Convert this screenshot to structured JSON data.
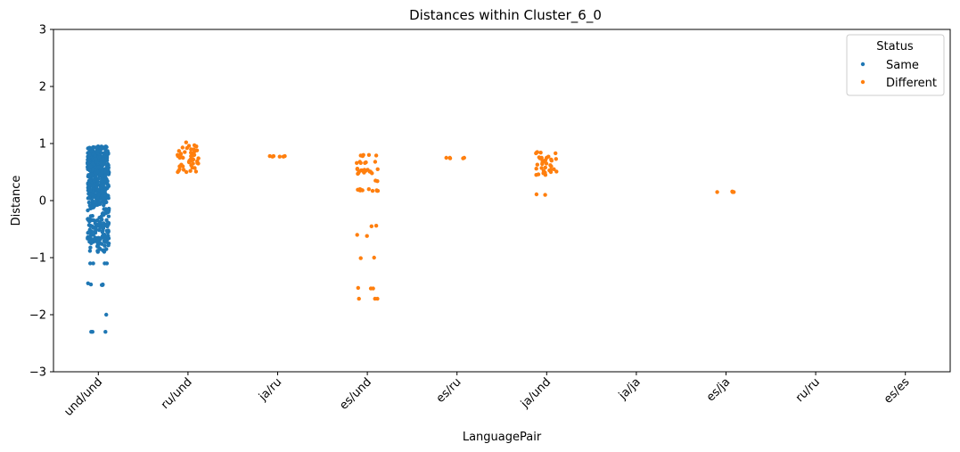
{
  "chart_data": {
    "type": "scatter",
    "title": "Distances within Cluster_6_0",
    "xlabel": "LanguagePair",
    "ylabel": "Distance",
    "categories": [
      "und/und",
      "ru/und",
      "ja/ru",
      "es/und",
      "es/ru",
      "ja/und",
      "ja/ja",
      "es/ja",
      "ru/ru",
      "es/es"
    ],
    "ylim": [
      -3,
      3
    ],
    "yticks": [
      "−3",
      "−2",
      "−1",
      "0",
      "1",
      "2",
      "3"
    ],
    "grid": false,
    "legend": {
      "title": "Status",
      "placement": "top-right",
      "entries": [
        {
          "name": "Same",
          "color": "#1f77b4"
        },
        {
          "name": "Different",
          "color": "#ff7f0e"
        }
      ]
    },
    "series": [
      {
        "name": "Same",
        "color": "#1f77b4",
        "groups": [
          {
            "category": "und/und",
            "y": [
              0.95,
              0.92,
              0.9,
              0.88,
              0.87,
              0.86,
              0.85,
              0.84,
              0.83,
              0.82,
              0.8,
              0.78,
              0.76,
              0.75,
              0.74,
              0.72,
              0.7,
              0.7,
              0.69,
              0.68,
              0.67,
              0.65,
              0.64,
              0.62,
              0.6,
              0.6,
              0.58,
              0.56,
              0.55,
              0.54,
              0.52,
              0.5,
              0.5,
              0.48,
              0.47,
              0.45,
              0.44,
              0.42,
              0.4,
              0.4,
              0.38,
              0.36,
              0.35,
              0.34,
              0.32,
              0.3,
              0.28,
              0.26,
              0.25,
              0.24,
              0.22,
              0.2,
              0.18,
              0.16,
              0.15,
              0.14,
              0.12,
              0.1,
              0.1,
              0.09,
              0.08,
              0.07,
              0.06,
              0.05,
              0.04,
              0.03,
              0.02,
              0.0,
              -0.02,
              -0.05,
              -0.08,
              -0.1,
              -0.12,
              -0.15,
              -0.18,
              -0.2,
              -0.2,
              -0.22,
              -0.25,
              -0.28,
              -0.3,
              -0.32,
              -0.35,
              -0.4,
              -0.45,
              -0.5,
              -0.55,
              -0.6,
              -0.6,
              -0.62,
              -0.65,
              -0.65,
              -0.68,
              -0.7,
              -0.72,
              -0.75,
              -0.8,
              -0.85,
              -0.85,
              -0.88,
              -1.1,
              -1.1,
              -1.1,
              -1.1,
              -1.45,
              -1.47,
              -1.47,
              -1.48,
              -1.48,
              -2.0,
              -2.3,
              -2.3,
              -2.3
            ],
            "dense": [
              {
                "from": 0.55,
                "to": 0.95,
                "n": 170
              },
              {
                "from": 0.3,
                "to": 0.55,
                "n": 80
              },
              {
                "from": 0.0,
                "to": 0.3,
                "n": 90
              },
              {
                "from": -0.35,
                "to": 0.0,
                "n": 40
              },
              {
                "from": -0.75,
                "to": -0.35,
                "n": 70
              },
              {
                "from": -0.9,
                "to": -0.75,
                "n": 15
              }
            ]
          }
        ]
      },
      {
        "name": "Different",
        "color": "#ff7f0e",
        "groups": [
          {
            "category": "ru/und",
            "y": [
              1.02,
              0.97,
              0.96,
              0.95,
              0.93,
              0.92,
              0.9,
              0.9,
              0.88,
              0.87,
              0.86,
              0.85,
              0.84,
              0.83,
              0.82,
              0.81,
              0.8,
              0.8,
              0.79,
              0.78,
              0.78,
              0.77,
              0.76,
              0.75,
              0.75,
              0.74,
              0.73,
              0.72,
              0.72,
              0.7,
              0.7,
              0.69,
              0.68,
              0.67,
              0.66,
              0.65,
              0.65,
              0.63,
              0.62,
              0.6,
              0.6,
              0.58,
              0.57,
              0.55,
              0.54,
              0.52,
              0.52,
              0.51,
              0.5,
              0.5
            ]
          },
          {
            "category": "ja/ru",
            "y": [
              0.78,
              0.78,
              0.77,
              0.77,
              0.78,
              0.77
            ]
          },
          {
            "category": "es/und",
            "y": [
              0.8,
              0.8,
              0.79,
              0.79,
              0.78,
              0.68,
              0.68,
              0.67,
              0.66,
              0.66,
              0.66,
              0.56,
              0.55,
              0.55,
              0.54,
              0.54,
              0.53,
              0.53,
              0.52,
              0.52,
              0.51,
              0.51,
              0.5,
              0.5,
              0.49,
              0.48,
              0.48,
              0.47,
              0.35,
              0.34,
              0.2,
              0.2,
              0.19,
              0.19,
              0.19,
              0.18,
              0.18,
              0.18,
              0.18,
              0.18,
              0.17,
              0.17,
              0.17,
              -0.44,
              -0.45,
              -0.6,
              -0.62,
              -1.0,
              -1.01,
              -1.53,
              -1.54,
              -1.54,
              -1.72,
              -1.72,
              -1.72
            ]
          },
          {
            "category": "es/ru",
            "y": [
              0.75,
              0.75,
              0.74,
              0.75,
              0.74
            ]
          },
          {
            "category": "ja/und",
            "y": [
              0.85,
              0.84,
              0.84,
              0.83,
              0.83,
              0.77,
              0.76,
              0.75,
              0.75,
              0.74,
              0.73,
              0.72,
              0.71,
              0.7,
              0.7,
              0.68,
              0.66,
              0.65,
              0.64,
              0.63,
              0.62,
              0.6,
              0.58,
              0.57,
              0.56,
              0.55,
              0.54,
              0.53,
              0.52,
              0.52,
              0.51,
              0.5,
              0.5,
              0.49,
              0.48,
              0.46,
              0.45,
              0.45,
              0.11,
              0.1
            ]
          },
          {
            "category": "es/ja",
            "y": [
              0.16,
              0.15,
              0.15,
              0.15
            ]
          }
        ]
      }
    ]
  }
}
